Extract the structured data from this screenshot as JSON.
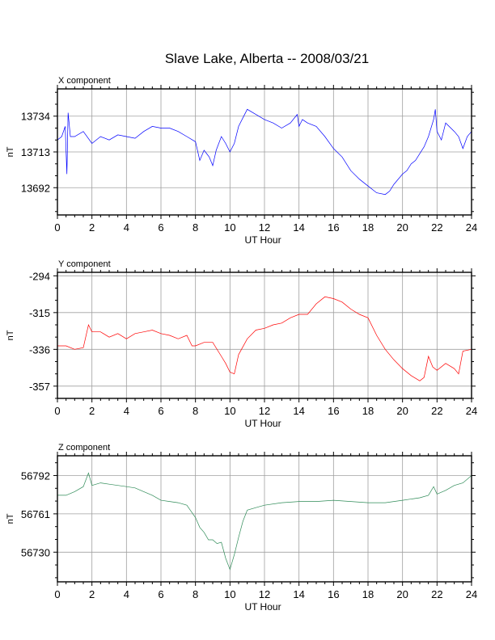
{
  "title": "Slave Lake, Alberta -- 2008/03/21",
  "chart_data": [
    {
      "type": "line",
      "label": "X component",
      "ylabel": "nT",
      "xlabel": "UT Hour",
      "color": "#0000ff",
      "xlim": [
        0,
        24
      ],
      "ylim": [
        13676,
        13750
      ],
      "x_ticks": [
        0,
        2,
        4,
        6,
        8,
        10,
        12,
        14,
        16,
        18,
        20,
        22,
        24
      ],
      "y_ticks": [
        13692,
        13713,
        13734
      ],
      "grid": true,
      "x": [
        0,
        0.25,
        0.45,
        0.55,
        0.62,
        0.75,
        1,
        1.5,
        2,
        2.5,
        3,
        3.5,
        4,
        4.5,
        5,
        5.5,
        6,
        6.5,
        7,
        7.5,
        8,
        8.25,
        8.5,
        8.8,
        9,
        9.2,
        9.5,
        9.75,
        10,
        10.25,
        10.5,
        10.75,
        11,
        11.5,
        12,
        12.5,
        13,
        13.5,
        13.9,
        14,
        14.2,
        14.5,
        15,
        15.5,
        16,
        16.5,
        17,
        17.5,
        18,
        18.5,
        19,
        19.25,
        19.5,
        20,
        20.25,
        20.5,
        20.75,
        21,
        21.25,
        21.5,
        21.8,
        21.9,
        22,
        22.25,
        22.5,
        23,
        23.25,
        23.5,
        23.75,
        24
      ],
      "y": [
        13720,
        13722,
        13728,
        13700,
        13736,
        13722,
        13722,
        13725,
        13718,
        13722,
        13720,
        13723,
        13722,
        13721,
        13725,
        13728,
        13727,
        13727,
        13725,
        13722,
        13719,
        13708,
        13714,
        13710,
        13705,
        13714,
        13722,
        13718,
        13713,
        13718,
        13728,
        13733,
        13738,
        13735,
        13732,
        13730,
        13727,
        13730,
        13735,
        13728,
        13732,
        13730,
        13728,
        13722,
        13715,
        13710,
        13702,
        13697,
        13693,
        13689,
        13688,
        13690,
        13694,
        13700,
        13702,
        13706,
        13708,
        13712,
        13716,
        13722,
        13732,
        13738,
        13725,
        13720,
        13730,
        13725,
        13722,
        13715,
        13722,
        13725
      ]
    },
    {
      "type": "line",
      "label": "Y component",
      "ylabel": "nT",
      "xlabel": "UT Hour",
      "color": "#ff0000",
      "xlim": [
        0,
        24
      ],
      "ylim": [
        -364,
        -292
      ],
      "x_ticks": [
        0,
        2,
        4,
        6,
        8,
        10,
        12,
        14,
        16,
        18,
        20,
        22,
        24
      ],
      "y_ticks": [
        -294,
        -315,
        -336,
        -357
      ],
      "grid": true,
      "x": [
        0,
        0.5,
        1,
        1.5,
        1.8,
        2,
        2.5,
        3,
        3.5,
        4,
        4.5,
        5,
        5.5,
        6,
        6.5,
        7,
        7.5,
        7.8,
        8,
        8.5,
        9,
        9.5,
        9.75,
        10,
        10.25,
        10.5,
        11,
        11.5,
        12,
        12.5,
        13,
        13.5,
        14,
        14.5,
        15,
        15.5,
        16,
        16.5,
        17,
        17.5,
        18,
        18.5,
        19,
        19.5,
        20,
        20.5,
        21,
        21.25,
        21.5,
        21.75,
        22,
        22.5,
        23,
        23.25,
        23.5,
        24
      ],
      "y": [
        -334,
        -334,
        -336,
        -335,
        -322,
        -326,
        -326,
        -329,
        -327,
        -330,
        -327,
        -326,
        -325,
        -327,
        -328,
        -330,
        -328,
        -334,
        -334,
        -332,
        -332,
        -340,
        -344,
        -349,
        -350,
        -339,
        -330,
        -325,
        -324,
        -322,
        -321,
        -318,
        -316,
        -316,
        -310,
        -306,
        -307,
        -309,
        -313,
        -316,
        -318,
        -328,
        -336,
        -342,
        -347,
        -351,
        -354,
        -352,
        -340,
        -346,
        -348,
        -344,
        -347,
        -350,
        -337,
        -336
      ]
    },
    {
      "type": "line",
      "label": "Z component",
      "ylabel": "nT",
      "xlabel": "UT Hour",
      "color": "#2e8b57",
      "xlim": [
        0,
        24
      ],
      "ylim": [
        56706,
        56808
      ],
      "x_ticks": [
        0,
        2,
        4,
        6,
        8,
        10,
        12,
        14,
        16,
        18,
        20,
        22,
        24
      ],
      "y_ticks": [
        56730,
        56761,
        56792
      ],
      "grid": true,
      "x": [
        0,
        0.5,
        1,
        1.5,
        1.8,
        2,
        2.5,
        3,
        3.5,
        4,
        4.5,
        5,
        5.5,
        6,
        6.5,
        7,
        7.5,
        7.75,
        8,
        8.25,
        8.5,
        8.75,
        9,
        9.25,
        9.5,
        9.75,
        10,
        10.25,
        10.5,
        10.75,
        11,
        11.5,
        12,
        13,
        14,
        15,
        16,
        17,
        18,
        19,
        20,
        21,
        21.5,
        21.8,
        22,
        22.5,
        23,
        23.5,
        24
      ],
      "y": [
        56776,
        56776,
        56779,
        56783,
        56794,
        56784,
        56786,
        56785,
        56784,
        56783,
        56782,
        56779,
        56776,
        56772,
        56771,
        56770,
        56768,
        56763,
        56758,
        56750,
        56746,
        56740,
        56740,
        56737,
        56738,
        56725,
        56716,
        56728,
        56742,
        56755,
        56764,
        56766,
        56768,
        56770,
        56771,
        56771,
        56772,
        56771,
        56770,
        56770,
        56772,
        56774,
        56776,
        56783,
        56777,
        56780,
        56784,
        56786,
        56792
      ]
    }
  ]
}
